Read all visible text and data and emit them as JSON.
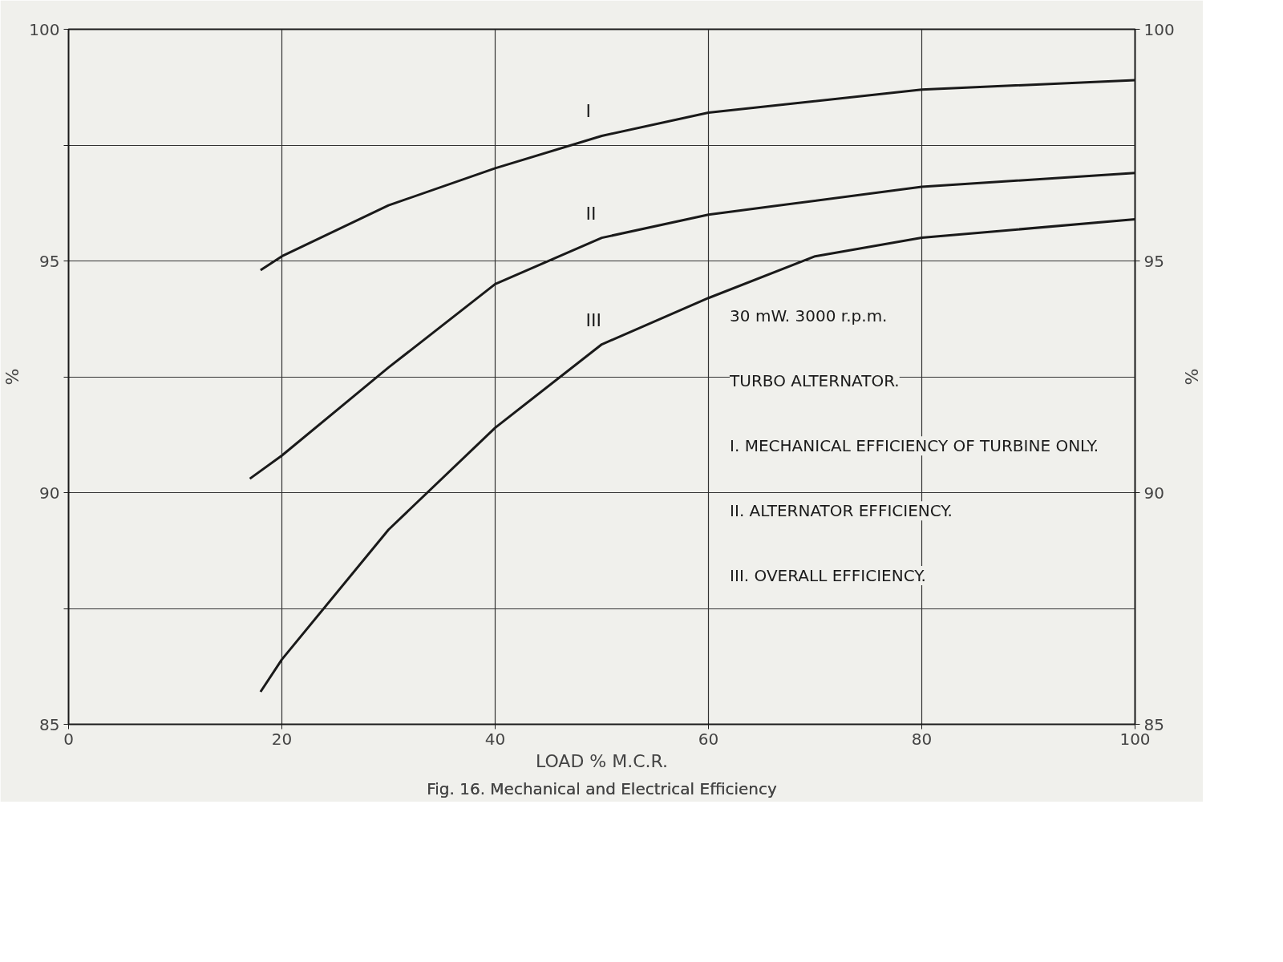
{
  "chart_data": {
    "type": "line",
    "title": "Fig. 16. Mechanical and Electrical Efficiency",
    "xlabel": "LOAD % M.C.R.",
    "ylabel": "%",
    "y2label": "%",
    "xlim": [
      0,
      100
    ],
    "xticks": [
      0,
      20,
      40,
      60,
      80,
      100
    ],
    "ylim": [
      85,
      100
    ],
    "yticks": [
      85,
      {
        "value": 87.5,
        "label": null
      },
      90,
      {
        "value": 92.5,
        "label": null
      },
      95,
      {
        "value": 97.5,
        "label": null
      },
      100
    ],
    "y2lim": [
      85,
      100
    ],
    "y2ticks": [
      85,
      90,
      95,
      100
    ],
    "grid": true,
    "marker": "none",
    "line_style": "solid",
    "series": [
      {
        "name": "I",
        "color": "#1a1a1a",
        "x": [
          18,
          20,
          30,
          40,
          50,
          60,
          80,
          100
        ],
        "values": [
          94.8,
          95.1,
          96.2,
          97.0,
          97.7,
          98.2,
          98.7,
          98.9
        ]
      },
      {
        "name": "II",
        "color": "#1a1a1a",
        "x": [
          17,
          20,
          30,
          40,
          50,
          60,
          80,
          100
        ],
        "values": [
          90.3,
          90.8,
          92.7,
          94.5,
          95.5,
          96.0,
          96.6,
          96.9
        ]
      },
      {
        "name": "III",
        "color": "#1a1a1a",
        "x": [
          18,
          20,
          30,
          40,
          50,
          60,
          70,
          80,
          100
        ],
        "values": [
          85.7,
          86.4,
          89.2,
          91.4,
          93.2,
          94.2,
          95.1,
          95.5,
          95.9
        ]
      }
    ],
    "annotations": [
      "30 mW. 3000 r.p.m.",
      "TURBO ALTERNATOR.",
      "I. MECHANICAL EFFICIENCY OF TURBINE ONLY.",
      "II. ALTERNATOR EFFICIENCY.",
      "III. OVERALL EFFICIENCY."
    ]
  }
}
